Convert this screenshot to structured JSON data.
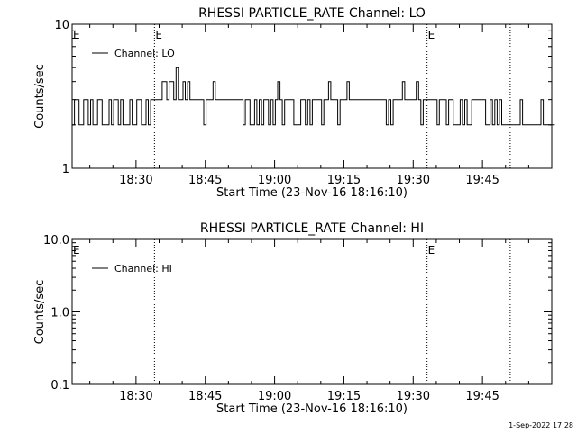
{
  "footer": {
    "timestamp": "1-Sep-2022 17:28"
  },
  "chart_data": [
    {
      "type": "line",
      "title": "RHESSI PARTICLE_RATE Channel: LO",
      "xlabel": "Start Time (23-Nov-16 18:16:10)",
      "ylabel": "Counts/sec",
      "yscale": "log",
      "ylim": [
        1,
        10
      ],
      "xlim": [
        "18:16:10",
        "20:00:00"
      ],
      "x_ticks": [
        "18:30",
        "18:45",
        "19:00",
        "19:15",
        "19:30",
        "19:45"
      ],
      "y_ticks": [
        "1",
        "10"
      ],
      "legend": {
        "entries": [
          "Channel: LO"
        ],
        "position": "top-left"
      },
      "markers": [
        {
          "time": "18:34",
          "style": "dotted",
          "label": "E"
        },
        {
          "time": "19:33",
          "style": "dotted",
          "label": "E"
        },
        {
          "time": "19:51",
          "style": "dotted",
          "label": ""
        }
      ],
      "start_marker_label": "E",
      "series": [
        {
          "name": "Channel: LO",
          "step_minutes": 0.5,
          "start": "18:16:10",
          "values": [
            2,
            3,
            3,
            2,
            2,
            3,
            3,
            2,
            3,
            2,
            2,
            3,
            3,
            2,
            2,
            2,
            3,
            2,
            3,
            3,
            2,
            3,
            2,
            2,
            2,
            3,
            2,
            2,
            3,
            3,
            2,
            2,
            3,
            2,
            3,
            3,
            3,
            3,
            3,
            4,
            4,
            3,
            4,
            4,
            3,
            5,
            3,
            3,
            4,
            3,
            4,
            3,
            3,
            3,
            3,
            3,
            3,
            2,
            3,
            3,
            3,
            4,
            3,
            3,
            3,
            3,
            3,
            3,
            3,
            3,
            3,
            3,
            3,
            3,
            2,
            3,
            3,
            2,
            2,
            3,
            2,
            3,
            2,
            3,
            3,
            2,
            3,
            2,
            3,
            4,
            3,
            2,
            3,
            3,
            3,
            3,
            2,
            2,
            2,
            3,
            3,
            2,
            3,
            2,
            3,
            3,
            3,
            3,
            2,
            3,
            3,
            4,
            3,
            3,
            3,
            2,
            3,
            3,
            3,
            4,
            3,
            3,
            3,
            3,
            3,
            3,
            3,
            3,
            3,
            3,
            3,
            3,
            3,
            3,
            3,
            3,
            2,
            3,
            2,
            3,
            3,
            3,
            3,
            4,
            3,
            3,
            3,
            3,
            3,
            4,
            3,
            2,
            3,
            3,
            3,
            3,
            3,
            3,
            2,
            3,
            3,
            3,
            2,
            3,
            3,
            2,
            2,
            2,
            3,
            2,
            3,
            2,
            2,
            3,
            3,
            3,
            3,
            3,
            3,
            2,
            2,
            3,
            2,
            3,
            2,
            3,
            2,
            2,
            2,
            2,
            2,
            2,
            2,
            2,
            3,
            2,
            2,
            2,
            2,
            2,
            2,
            2,
            2,
            3,
            2,
            2,
            2,
            2,
            2
          ]
        }
      ]
    },
    {
      "type": "line",
      "title": "RHESSI PARTICLE_RATE Channel: HI",
      "xlabel": "Start Time (23-Nov-16 18:16:10)",
      "ylabel": "Counts/sec",
      "yscale": "log",
      "ylim": [
        0.1,
        10
      ],
      "xlim": [
        "18:16:10",
        "20:00:00"
      ],
      "x_ticks": [
        "18:30",
        "18:45",
        "19:00",
        "19:15",
        "19:30",
        "19:45"
      ],
      "y_ticks": [
        "0.1",
        "1.0",
        "10.0"
      ],
      "legend": {
        "entries": [
          "Channel: HI"
        ],
        "position": "top-left"
      },
      "markers": [
        {
          "time": "18:34",
          "style": "dotted",
          "label": ""
        },
        {
          "time": "19:33",
          "style": "dotted",
          "label": "E"
        },
        {
          "time": "19:51",
          "style": "dotted",
          "label": ""
        }
      ],
      "start_marker_label": "E",
      "series": [
        {
          "name": "Channel: HI",
          "values": []
        }
      ]
    }
  ]
}
